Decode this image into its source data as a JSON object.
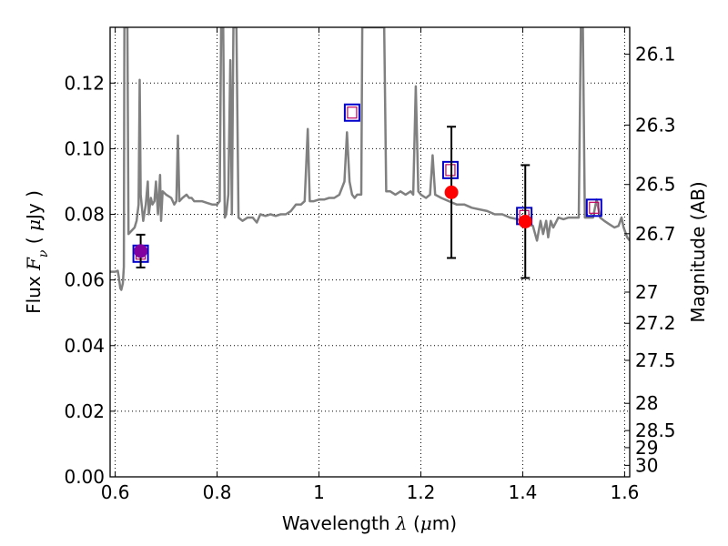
{
  "chart_data": {
    "type": "scatter",
    "xlabel": {
      "prefix": "Wavelength  ",
      "symbol": "λ",
      "unit_open": " (",
      "unit_mu": "μ",
      "unit_close": "m)"
    },
    "ylabel": {
      "prefix": "Flux  ",
      "symbol": "F",
      "subscript": "ν",
      "unit_open": "  ( ",
      "unit_mu": "μ",
      "unit_close": "Jy )"
    },
    "y2label": "Magnitude (AB)",
    "xlim": [
      0.59,
      1.61
    ],
    "ylim": [
      0.0,
      0.137
    ],
    "xticks": [
      {
        "value": 0.6,
        "label": "0.6"
      },
      {
        "value": 0.8,
        "label": "0.8"
      },
      {
        "value": 1.0,
        "label": "1"
      },
      {
        "value": 1.2,
        "label": "1.2"
      },
      {
        "value": 1.4,
        "label": "1.4"
      },
      {
        "value": 1.6,
        "label": "1.6"
      }
    ],
    "yticks": [
      {
        "value": 0.0,
        "label": "0.00"
      },
      {
        "value": 0.02,
        "label": "0.02"
      },
      {
        "value": 0.04,
        "label": "0.04"
      },
      {
        "value": 0.06,
        "label": "0.06"
      },
      {
        "value": 0.08,
        "label": "0.08"
      },
      {
        "value": 0.1,
        "label": "0.10"
      },
      {
        "value": 0.12,
        "label": "0.12"
      }
    ],
    "y2ticks": [
      {
        "label": "26.1",
        "flux": 0.1288
      },
      {
        "label": "26.3",
        "flux": 0.1072
      },
      {
        "label": "26.5",
        "flux": 0.0891
      },
      {
        "label": "26.7",
        "flux": 0.0741
      },
      {
        "label": "27",
        "flux": 0.0563
      },
      {
        "label": "27.2",
        "flux": 0.0468
      },
      {
        "label": "27.5",
        "flux": 0.0355
      },
      {
        "label": "28",
        "flux": 0.0224
      },
      {
        "label": "28.5",
        "flux": 0.0141
      },
      {
        "label": "29",
        "flux": 0.0089
      },
      {
        "label": "30",
        "flux": 0.0035
      }
    ],
    "grid": true,
    "colors": {
      "spectrum": "#808080",
      "observed": "#ff0000",
      "model_box": "#0000cc",
      "model_inner": "#c00060",
      "overlap": "#8000a0",
      "errorbar": "#000000"
    },
    "spectrum": [
      [
        0.59,
        0.0625
      ],
      [
        0.6,
        0.0625
      ],
      [
        0.605,
        0.0628
      ],
      [
        0.607,
        0.061
      ],
      [
        0.61,
        0.0575
      ],
      [
        0.612,
        0.057
      ],
      [
        0.615,
        0.059
      ],
      [
        0.617,
        0.064
      ],
      [
        0.618,
        0.137
      ],
      [
        0.624,
        0.137
      ],
      [
        0.626,
        0.074
      ],
      [
        0.632,
        0.075
      ],
      [
        0.638,
        0.076
      ],
      [
        0.642,
        0.078
      ],
      [
        0.646,
        0.083
      ],
      [
        0.648,
        0.121
      ],
      [
        0.65,
        0.086
      ],
      [
        0.655,
        0.078
      ],
      [
        0.66,
        0.083
      ],
      [
        0.664,
        0.09
      ],
      [
        0.666,
        0.08
      ],
      [
        0.67,
        0.085
      ],
      [
        0.673,
        0.083
      ],
      [
        0.677,
        0.084
      ],
      [
        0.68,
        0.09
      ],
      [
        0.684,
        0.08
      ],
      [
        0.688,
        0.092
      ],
      [
        0.69,
        0.078
      ],
      [
        0.693,
        0.087
      ],
      [
        0.7,
        0.086
      ],
      [
        0.71,
        0.085
      ],
      [
        0.716,
        0.083
      ],
      [
        0.72,
        0.084
      ],
      [
        0.723,
        0.104
      ],
      [
        0.726,
        0.084
      ],
      [
        0.732,
        0.085
      ],
      [
        0.74,
        0.086
      ],
      [
        0.745,
        0.085
      ],
      [
        0.75,
        0.085
      ],
      [
        0.755,
        0.084
      ],
      [
        0.76,
        0.084
      ],
      [
        0.77,
        0.084
      ],
      [
        0.78,
        0.0835
      ],
      [
        0.79,
        0.083
      ],
      [
        0.8,
        0.083
      ],
      [
        0.805,
        0.084
      ],
      [
        0.808,
        0.137
      ],
      [
        0.812,
        0.137
      ],
      [
        0.815,
        0.079
      ],
      [
        0.818,
        0.08
      ],
      [
        0.822,
        0.086
      ],
      [
        0.826,
        0.127
      ],
      [
        0.829,
        0.08
      ],
      [
        0.832,
        0.137
      ],
      [
        0.838,
        0.137
      ],
      [
        0.842,
        0.079
      ],
      [
        0.85,
        0.078
      ],
      [
        0.86,
        0.079
      ],
      [
        0.87,
        0.079
      ],
      [
        0.878,
        0.0775
      ],
      [
        0.885,
        0.08
      ],
      [
        0.895,
        0.0795
      ],
      [
        0.905,
        0.08
      ],
      [
        0.915,
        0.0795
      ],
      [
        0.925,
        0.08
      ],
      [
        0.935,
        0.08
      ],
      [
        0.945,
        0.081
      ],
      [
        0.955,
        0.083
      ],
      [
        0.965,
        0.083
      ],
      [
        0.972,
        0.084
      ],
      [
        0.978,
        0.106
      ],
      [
        0.982,
        0.084
      ],
      [
        0.99,
        0.084
      ],
      [
        1.0,
        0.0845
      ],
      [
        1.01,
        0.0845
      ],
      [
        1.02,
        0.085
      ],
      [
        1.03,
        0.085
      ],
      [
        1.04,
        0.086
      ],
      [
        1.05,
        0.09
      ],
      [
        1.055,
        0.105
      ],
      [
        1.06,
        0.09
      ],
      [
        1.065,
        0.086
      ],
      [
        1.07,
        0.085
      ],
      [
        1.075,
        0.086
      ],
      [
        1.08,
        0.086
      ],
      [
        1.083,
        0.086
      ],
      [
        1.085,
        0.137
      ],
      [
        1.128,
        0.137
      ],
      [
        1.132,
        0.087
      ],
      [
        1.14,
        0.087
      ],
      [
        1.15,
        0.086
      ],
      [
        1.16,
        0.087
      ],
      [
        1.17,
        0.086
      ],
      [
        1.18,
        0.087
      ],
      [
        1.185,
        0.086
      ],
      [
        1.19,
        0.119
      ],
      [
        1.195,
        0.087
      ],
      [
        1.2,
        0.086
      ],
      [
        1.21,
        0.085
      ],
      [
        1.218,
        0.086
      ],
      [
        1.223,
        0.098
      ],
      [
        1.228,
        0.086
      ],
      [
        1.24,
        0.085
      ],
      [
        1.255,
        0.084
      ],
      [
        1.27,
        0.083
      ],
      [
        1.285,
        0.083
      ],
      [
        1.3,
        0.082
      ],
      [
        1.315,
        0.0815
      ],
      [
        1.33,
        0.081
      ],
      [
        1.345,
        0.08
      ],
      [
        1.36,
        0.08
      ],
      [
        1.375,
        0.079
      ],
      [
        1.39,
        0.0785
      ],
      [
        1.4,
        0.078
      ],
      [
        1.41,
        0.077
      ],
      [
        1.42,
        0.0765
      ],
      [
        1.428,
        0.072
      ],
      [
        1.435,
        0.078
      ],
      [
        1.44,
        0.074
      ],
      [
        1.446,
        0.078
      ],
      [
        1.45,
        0.073
      ],
      [
        1.455,
        0.078
      ],
      [
        1.46,
        0.076
      ],
      [
        1.47,
        0.079
      ],
      [
        1.48,
        0.0785
      ],
      [
        1.49,
        0.079
      ],
      [
        1.5,
        0.079
      ],
      [
        1.51,
        0.079
      ],
      [
        1.514,
        0.137
      ],
      [
        1.518,
        0.137
      ],
      [
        1.522,
        0.079
      ],
      [
        1.53,
        0.079
      ],
      [
        1.538,
        0.079
      ],
      [
        1.545,
        0.0845
      ],
      [
        1.552,
        0.079
      ],
      [
        1.56,
        0.078
      ],
      [
        1.57,
        0.077
      ],
      [
        1.58,
        0.076
      ],
      [
        1.588,
        0.0765
      ],
      [
        1.594,
        0.079
      ],
      [
        1.598,
        0.076
      ],
      [
        1.605,
        0.073
      ],
      [
        1.61,
        0.072
      ]
    ],
    "observed": [
      {
        "x": 0.65,
        "y": 0.0688,
        "yerr": 0.005
      },
      {
        "x": 1.26,
        "y": 0.0867,
        "yerr": 0.02
      },
      {
        "x": 1.405,
        "y": 0.0778,
        "yerr": 0.0172
      }
    ],
    "model_photometry": [
      {
        "x": 0.65,
        "y": 0.068
      },
      {
        "x": 1.065,
        "y": 0.111
      },
      {
        "x": 1.258,
        "y": 0.0935
      },
      {
        "x": 1.403,
        "y": 0.0795
      },
      {
        "x": 1.54,
        "y": 0.082
      }
    ]
  }
}
